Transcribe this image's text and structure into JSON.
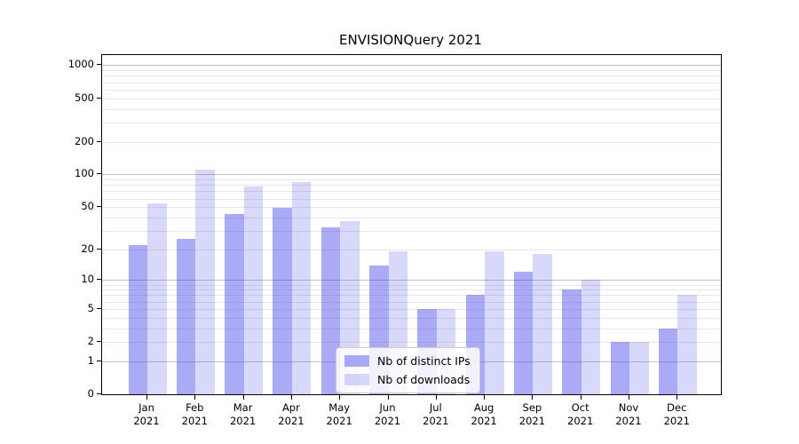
{
  "chart_data": {
    "type": "bar",
    "title": "ENVISIONQuery 2021",
    "categories": [
      {
        "month": "Jan",
        "year": "2021"
      },
      {
        "month": "Feb",
        "year": "2021"
      },
      {
        "month": "Mar",
        "year": "2021"
      },
      {
        "month": "Apr",
        "year": "2021"
      },
      {
        "month": "May",
        "year": "2021"
      },
      {
        "month": "Jun",
        "year": "2021"
      },
      {
        "month": "Jul",
        "year": "2021"
      },
      {
        "month": "Aug",
        "year": "2021"
      },
      {
        "month": "Sep",
        "year": "2021"
      },
      {
        "month": "Oct",
        "year": "2021"
      },
      {
        "month": "Nov",
        "year": "2021"
      },
      {
        "month": "Dec",
        "year": "2021"
      }
    ],
    "series": [
      {
        "name": "Nb of distinct IPs",
        "key": "distinct-ips",
        "color": "rgba(70,70,235,0.46)",
        "values": [
          22,
          25,
          43,
          49,
          32,
          14,
          5,
          7,
          12,
          8,
          2,
          3
        ]
      },
      {
        "name": "Nb of downloads",
        "key": "downloads",
        "color": "rgba(70,70,235,0.21)",
        "values": [
          54,
          110,
          78,
          85,
          37,
          19,
          5,
          19,
          18,
          10,
          2,
          7
        ]
      }
    ],
    "yscale": "log10(1+v)",
    "yticks": [
      1000,
      500,
      200,
      100,
      50,
      20,
      10,
      5,
      2,
      1,
      0
    ],
    "ylim": [
      0,
      1186
    ],
    "grid": true,
    "legend_position": "lower center",
    "colors": {
      "axis": "#000000",
      "gridline_major": "#c2c2c2",
      "gridline_minor": "#e7e7e7",
      "background": "#ffffff"
    }
  }
}
